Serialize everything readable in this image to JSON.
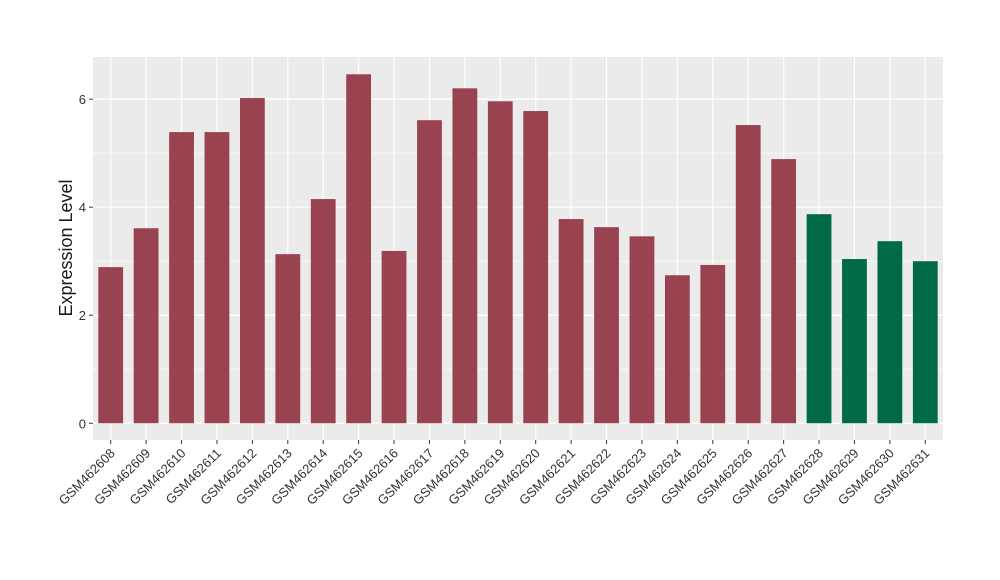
{
  "chart_data": {
    "type": "bar",
    "y_label": "Expression Level",
    "categories": [
      "GSM462608",
      "GSM462609",
      "GSM462610",
      "GSM462611",
      "GSM462612",
      "GSM462613",
      "GSM462614",
      "GSM462615",
      "GSM462616",
      "GSM462617",
      "GSM462618",
      "GSM462619",
      "GSM462620",
      "GSM462621",
      "GSM462622",
      "GSM462623",
      "GSM462624",
      "GSM462625",
      "GSM462626",
      "GSM462627",
      "GSM462628",
      "GSM462629",
      "GSM462630",
      "GSM462631"
    ],
    "values": [
      2.89,
      3.61,
      5.39,
      5.39,
      6.02,
      3.13,
      4.15,
      6.46,
      3.19,
      5.61,
      6.2,
      5.96,
      5.78,
      3.78,
      3.63,
      3.46,
      2.74,
      2.93,
      5.52,
      4.89,
      3.87,
      3.04,
      3.37,
      3.0
    ],
    "colors": [
      "#994250",
      "#994250",
      "#994250",
      "#994250",
      "#994250",
      "#994250",
      "#994250",
      "#994250",
      "#994250",
      "#994250",
      "#994250",
      "#994250",
      "#994250",
      "#994250",
      "#994250",
      "#994250",
      "#994250",
      "#994250",
      "#994250",
      "#994250",
      "#006a44",
      "#006a44",
      "#006a44",
      "#006a44"
    ],
    "ylim": [
      -0.31,
      6.78
    ],
    "yticks": [
      0,
      2,
      4,
      6
    ],
    "minor_yticks": [
      1,
      3,
      5
    ],
    "grid": true,
    "panel_color": "#ebebeb"
  }
}
